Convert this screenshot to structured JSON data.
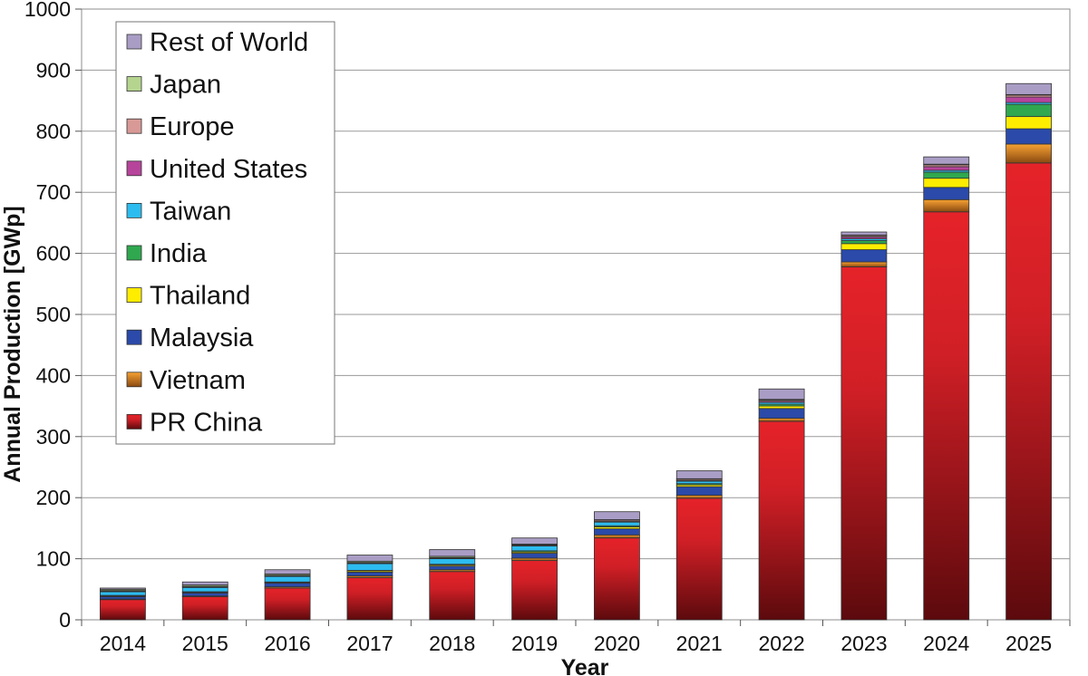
{
  "chart_data": {
    "type": "bar",
    "stacked": true,
    "title": "",
    "xlabel": "Year",
    "ylabel": "Annual Production [GWp]",
    "ylim": [
      0,
      1000
    ],
    "yticks": [
      0,
      100,
      200,
      300,
      400,
      500,
      600,
      700,
      800,
      900,
      1000
    ],
    "grid": true,
    "legend_position": "top-left",
    "categories": [
      "2014",
      "2015",
      "2016",
      "2017",
      "2018",
      "2019",
      "2020",
      "2021",
      "2022",
      "2023",
      "2024",
      "2025"
    ],
    "series": [
      {
        "name": "PR China",
        "color": "#e52329",
        "values": [
          33,
          38,
          52,
          69,
          79,
          97,
          134,
          199,
          325,
          578,
          668,
          748
        ]
      },
      {
        "name": "Vietnam",
        "color": "#f39323",
        "values": [
          1,
          1,
          2,
          3,
          3,
          4,
          5,
          5,
          5,
          8,
          20,
          31
        ]
      },
      {
        "name": "Malaysia",
        "color": "#2b4aa9",
        "values": [
          4,
          5,
          6,
          6,
          6,
          8,
          10,
          14,
          16,
          20,
          20,
          25
        ]
      },
      {
        "name": "Thailand",
        "color": "#ffed00",
        "values": [
          1,
          1,
          1,
          2,
          2,
          2,
          3,
          3,
          4,
          10,
          15,
          20
        ]
      },
      {
        "name": "India",
        "color": "#2fa84f",
        "values": [
          1,
          1,
          1,
          1,
          1,
          2,
          2,
          2,
          3,
          5,
          10,
          20
        ]
      },
      {
        "name": "Taiwan",
        "color": "#2dbcef",
        "values": [
          6,
          7,
          9,
          11,
          9,
          8,
          6,
          4,
          3,
          3,
          3,
          3
        ]
      },
      {
        "name": "United States",
        "color": "#b7449b",
        "values": [
          1,
          1,
          1,
          1,
          1,
          1,
          1,
          1,
          2,
          3,
          6,
          9
        ]
      },
      {
        "name": "Europe",
        "color": "#d99a97",
        "values": [
          1,
          1,
          1,
          1,
          1,
          1,
          2,
          2,
          2,
          2,
          3,
          3
        ]
      },
      {
        "name": "Japan",
        "color": "#b5d58f",
        "values": [
          2,
          2,
          2,
          2,
          2,
          1,
          1,
          1,
          1,
          1,
          1,
          1
        ]
      },
      {
        "name": "Rest of World",
        "color": "#a99dc5",
        "values": [
          2,
          5,
          7,
          10,
          11,
          10,
          13,
          13,
          17,
          5,
          12,
          18
        ]
      }
    ]
  }
}
